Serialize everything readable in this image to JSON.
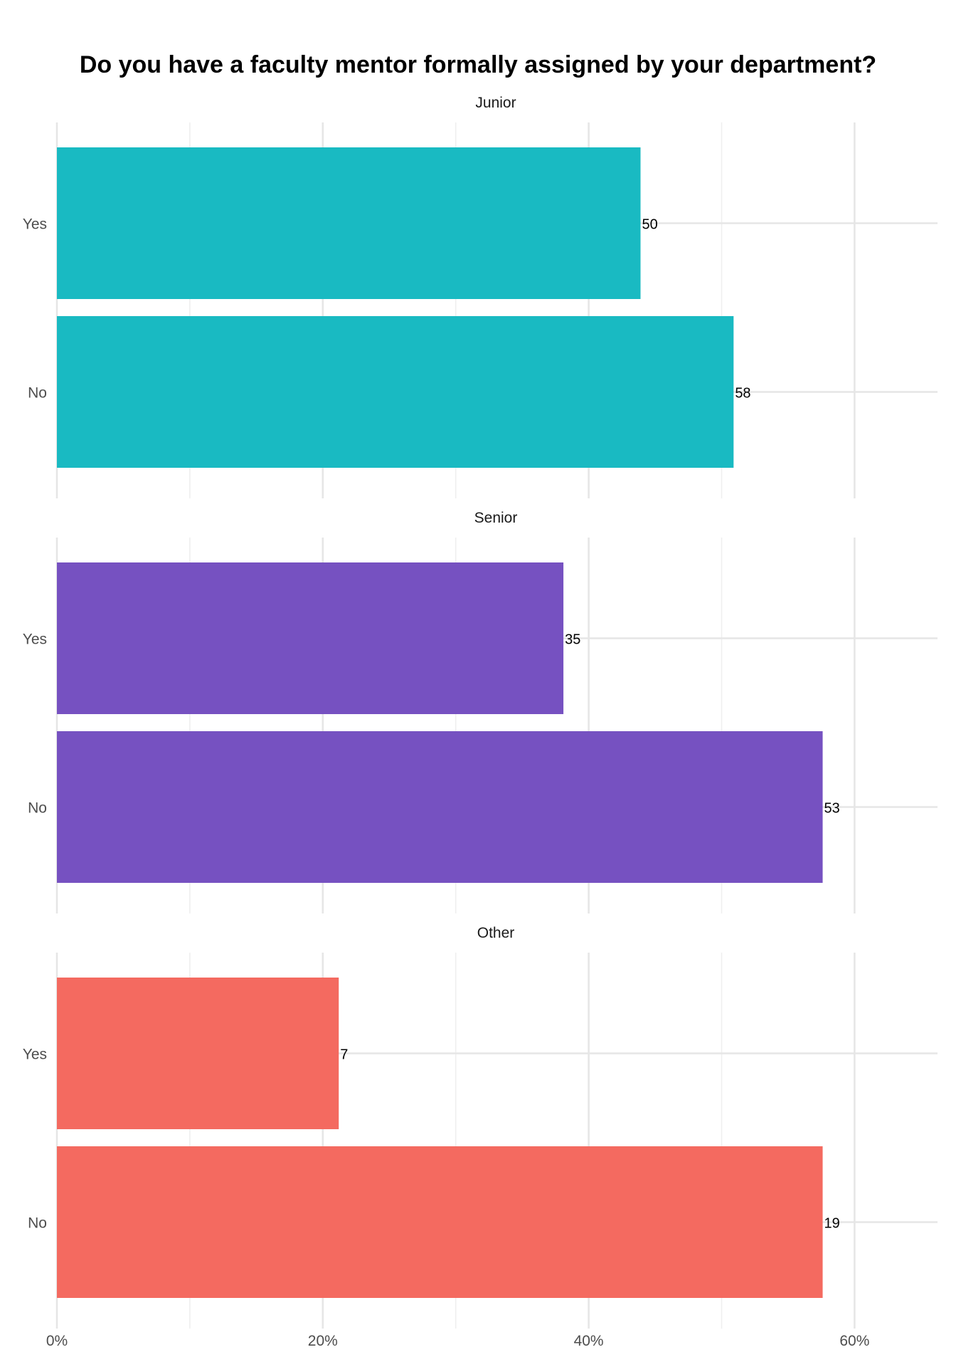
{
  "chart_data": {
    "type": "bar",
    "orientation": "horizontal",
    "title": "Do you have a faculty mentor formally assigned by your department?",
    "xlabel": "",
    "ylabel": "",
    "xlim": [
      0,
      66
    ],
    "x_ticks": [
      0,
      20,
      40,
      60
    ],
    "x_tick_labels": [
      "0%",
      "20%",
      "40%",
      "60%"
    ],
    "grid": true,
    "legend": "none",
    "categories": [
      "Yes",
      "No"
    ],
    "facets": [
      {
        "name": "Junior",
        "color": "#19bac2",
        "bars": [
          {
            "category": "Yes",
            "percent": 43.9,
            "count_label": "50"
          },
          {
            "category": "No",
            "percent": 50.9,
            "count_label": "58"
          }
        ]
      },
      {
        "name": "Senior",
        "color": "#7651c1",
        "bars": [
          {
            "category": "Yes",
            "percent": 38.1,
            "count_label": "35"
          },
          {
            "category": "No",
            "percent": 57.6,
            "count_label": "53"
          }
        ]
      },
      {
        "name": "Other",
        "color": "#f46a60",
        "bars": [
          {
            "category": "Yes",
            "percent": 21.2,
            "count_label": "7"
          },
          {
            "category": "No",
            "percent": 57.6,
            "count_label": "19"
          }
        ]
      }
    ]
  }
}
